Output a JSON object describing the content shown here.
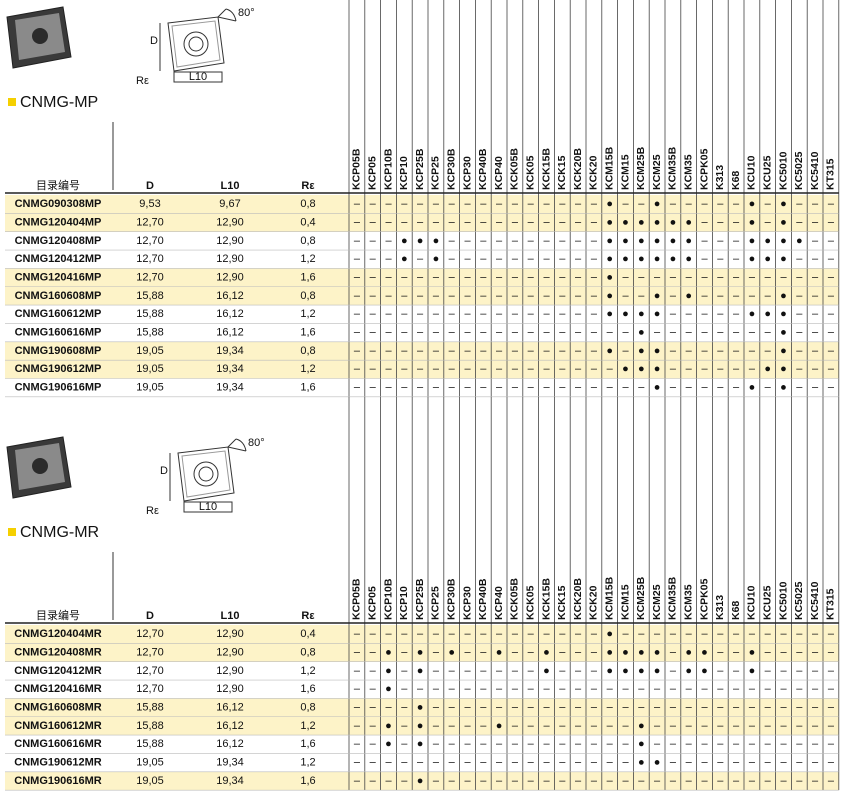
{
  "sections": [
    {
      "title": "CNMG-MP",
      "diagram": {
        "angle": "80°",
        "d": "D",
        "r": "Rε",
        "l10": "L10"
      },
      "headers": [
        "目录编号",
        "D",
        "L10",
        "Rε"
      ],
      "grades": [
        "KCP05B",
        "KCP05",
        "KCP10B",
        "KCP10",
        "KCP25B",
        "KCP25",
        "KCP30B",
        "KCP30",
        "KCP40B",
        "KCP40",
        "KCK05B",
        "KCK05",
        "KCK15B",
        "KCK15",
        "KCK20B",
        "KCK20",
        "KCM15B",
        "KCM15",
        "KCM25B",
        "KCM25",
        "KCM35B",
        "KCM35",
        "KCPK05",
        "K313",
        "K68",
        "KCU10",
        "KCU25",
        "KC5010",
        "KC5025",
        "KC5410",
        "KT315"
      ],
      "rows": [
        {
          "code": "CNMG090308MP",
          "d": "9,53",
          "l10": "9,67",
          "r": "0,8",
          "marks": [
            "–",
            "–",
            "–",
            "–",
            "–",
            "–",
            "–",
            "–",
            "–",
            "–",
            "–",
            "–",
            "–",
            "–",
            "–",
            "–",
            "●",
            "–",
            "–",
            "●",
            "–",
            "–",
            "–",
            "–",
            "–",
            "●",
            "–",
            "●",
            "–",
            "–",
            "–"
          ]
        },
        {
          "code": "CNMG120404MP",
          "d": "12,70",
          "l10": "12,90",
          "r": "0,4",
          "marks": [
            "–",
            "–",
            "–",
            "–",
            "–",
            "–",
            "–",
            "–",
            "–",
            "–",
            "–",
            "–",
            "–",
            "–",
            "–",
            "–",
            "●",
            "●",
            "●",
            "●",
            "●",
            "●",
            "–",
            "–",
            "–",
            "●",
            "–",
            "●",
            "–",
            "–",
            "–"
          ]
        },
        {
          "code": "CNMG120408MP",
          "d": "12,70",
          "l10": "12,90",
          "r": "0,8",
          "marks": [
            "–",
            "–",
            "–",
            "●",
            "●",
            "●",
            "–",
            "–",
            "–",
            "–",
            "–",
            "–",
            "–",
            "–",
            "–",
            "–",
            "●",
            "●",
            "●",
            "●",
            "●",
            "●",
            "–",
            "–",
            "–",
            "●",
            "●",
            "●",
            "●",
            "–",
            "–"
          ]
        },
        {
          "code": "CNMG120412MP",
          "d": "12,70",
          "l10": "12,90",
          "r": "1,2",
          "marks": [
            "–",
            "–",
            "–",
            "●",
            "–",
            "●",
            "–",
            "–",
            "–",
            "–",
            "–",
            "–",
            "–",
            "–",
            "–",
            "–",
            "●",
            "●",
            "●",
            "●",
            "●",
            "●",
            "–",
            "–",
            "–",
            "●",
            "●",
            "●",
            "–",
            "–",
            "–"
          ]
        },
        {
          "code": "CNMG120416MP",
          "d": "12,70",
          "l10": "12,90",
          "r": "1,6",
          "marks": [
            "–",
            "–",
            "–",
            "–",
            "–",
            "–",
            "–",
            "–",
            "–",
            "–",
            "–",
            "–",
            "–",
            "–",
            "–",
            "–",
            "●",
            "–",
            "–",
            "–",
            "–",
            "–",
            "–",
            "–",
            "–",
            "–",
            "–",
            "–",
            "–",
            "–",
            "–"
          ]
        },
        {
          "code": "CNMG160608MP",
          "d": "15,88",
          "l10": "16,12",
          "r": "0,8",
          "marks": [
            "–",
            "–",
            "–",
            "–",
            "–",
            "–",
            "–",
            "–",
            "–",
            "–",
            "–",
            "–",
            "–",
            "–",
            "–",
            "–",
            "●",
            "–",
            "–",
            "●",
            "–",
            "●",
            "–",
            "–",
            "–",
            "–",
            "–",
            "●",
            "–",
            "–",
            "–"
          ]
        },
        {
          "code": "CNMG160612MP",
          "d": "15,88",
          "l10": "16,12",
          "r": "1,2",
          "marks": [
            "–",
            "–",
            "–",
            "–",
            "–",
            "–",
            "–",
            "–",
            "–",
            "–",
            "–",
            "–",
            "–",
            "–",
            "–",
            "–",
            "●",
            "●",
            "●",
            "●",
            "–",
            "–",
            "–",
            "–",
            "–",
            "●",
            "●",
            "●",
            "–",
            "–",
            "–"
          ]
        },
        {
          "code": "CNMG160616MP",
          "d": "15,88",
          "l10": "16,12",
          "r": "1,6",
          "marks": [
            "–",
            "–",
            "–",
            "–",
            "–",
            "–",
            "–",
            "–",
            "–",
            "–",
            "–",
            "–",
            "–",
            "–",
            "–",
            "–",
            "–",
            "–",
            "●",
            "–",
            "–",
            "–",
            "–",
            "–",
            "–",
            "–",
            "–",
            "●",
            "–",
            "–",
            "–"
          ]
        },
        {
          "code": "CNMG190608MP",
          "d": "19,05",
          "l10": "19,34",
          "r": "0,8",
          "marks": [
            "–",
            "–",
            "–",
            "–",
            "–",
            "–",
            "–",
            "–",
            "–",
            "–",
            "–",
            "–",
            "–",
            "–",
            "–",
            "–",
            "●",
            "–",
            "●",
            "●",
            "–",
            "–",
            "–",
            "–",
            "–",
            "–",
            "–",
            "●",
            "–",
            "–",
            "–"
          ]
        },
        {
          "code": "CNMG190612MP",
          "d": "19,05",
          "l10": "19,34",
          "r": "1,2",
          "marks": [
            "–",
            "–",
            "–",
            "–",
            "–",
            "–",
            "–",
            "–",
            "–",
            "–",
            "–",
            "–",
            "–",
            "–",
            "–",
            "–",
            "–",
            "●",
            "●",
            "●",
            "–",
            "–",
            "–",
            "–",
            "–",
            "–",
            "●",
            "●",
            "–",
            "–",
            "–"
          ]
        },
        {
          "code": "CNMG190616MP",
          "d": "19,05",
          "l10": "19,34",
          "r": "1,6",
          "marks": [
            "–",
            "–",
            "–",
            "–",
            "–",
            "–",
            "–",
            "–",
            "–",
            "–",
            "–",
            "–",
            "–",
            "–",
            "–",
            "–",
            "–",
            "–",
            "–",
            "●",
            "–",
            "–",
            "–",
            "–",
            "–",
            "●",
            "–",
            "●",
            "–",
            "–",
            "–"
          ]
        }
      ]
    },
    {
      "title": "CNMG-MR",
      "diagram": {
        "angle": "80°",
        "d": "D",
        "r": "Rε",
        "l10": "L10"
      },
      "headers": [
        "目录编号",
        "D",
        "L10",
        "Rε"
      ],
      "grades": [
        "KCP05B",
        "KCP05",
        "KCP10B",
        "KCP10",
        "KCP25B",
        "KCP25",
        "KCP30B",
        "KCP30",
        "KCP40B",
        "KCP40",
        "KCK05B",
        "KCK05",
        "KCK15B",
        "KCK15",
        "KCK20B",
        "KCK20",
        "KCM15B",
        "KCM15",
        "KCM25B",
        "KCM25",
        "KCM35B",
        "KCM35",
        "KCPK05",
        "K313",
        "K68",
        "KCU10",
        "KCU25",
        "KC5010",
        "KC5025",
        "KC5410",
        "KT315"
      ],
      "rows": [
        {
          "code": "CNMG120404MR",
          "d": "12,70",
          "l10": "12,90",
          "r": "0,4",
          "marks": [
            "–",
            "–",
            "–",
            "–",
            "–",
            "–",
            "–",
            "–",
            "–",
            "–",
            "–",
            "–",
            "–",
            "–",
            "–",
            "–",
            "●",
            "–",
            "–",
            "–",
            "–",
            "–",
            "–",
            "–",
            "–",
            "–",
            "–",
            "–",
            "–",
            "–",
            "–"
          ]
        },
        {
          "code": "CNMG120408MR",
          "d": "12,70",
          "l10": "12,90",
          "r": "0,8",
          "marks": [
            "–",
            "–",
            "●",
            "–",
            "●",
            "–",
            "●",
            "–",
            "–",
            "●",
            "–",
            "–",
            "●",
            "–",
            "–",
            "–",
            "●",
            "●",
            "●",
            "●",
            "–",
            "●",
            "●",
            "–",
            "–",
            "●",
            "–",
            "–",
            "–",
            "–",
            "–"
          ]
        },
        {
          "code": "CNMG120412MR",
          "d": "12,70",
          "l10": "12,90",
          "r": "1,2",
          "marks": [
            "–",
            "–",
            "●",
            "–",
            "●",
            "–",
            "–",
            "–",
            "–",
            "–",
            "–",
            "–",
            "●",
            "–",
            "–",
            "–",
            "●",
            "●",
            "●",
            "●",
            "–",
            "●",
            "●",
            "–",
            "–",
            "●",
            "–",
            "–",
            "–",
            "–",
            "–"
          ]
        },
        {
          "code": "CNMG120416MR",
          "d": "12,70",
          "l10": "12,90",
          "r": "1,6",
          "marks": [
            "–",
            "–",
            "●",
            "–",
            "–",
            "–",
            "–",
            "–",
            "–",
            "–",
            "–",
            "–",
            "–",
            "–",
            "–",
            "–",
            "–",
            "–",
            "–",
            "–",
            "–",
            "–",
            "–",
            "–",
            "–",
            "–",
            "–",
            "–",
            "–",
            "–",
            "–"
          ]
        },
        {
          "code": "CNMG160608MR",
          "d": "15,88",
          "l10": "16,12",
          "r": "0,8",
          "marks": [
            "–",
            "–",
            "–",
            "–",
            "●",
            "–",
            "–",
            "–",
            "–",
            "–",
            "–",
            "–",
            "–",
            "–",
            "–",
            "–",
            "–",
            "–",
            "–",
            "–",
            "–",
            "–",
            "–",
            "–",
            "–",
            "–",
            "–",
            "–",
            "–",
            "–",
            "–"
          ]
        },
        {
          "code": "CNMG160612MR",
          "d": "15,88",
          "l10": "16,12",
          "r": "1,2",
          "marks": [
            "–",
            "–",
            "●",
            "–",
            "●",
            "–",
            "–",
            "–",
            "–",
            "●",
            "–",
            "–",
            "–",
            "–",
            "–",
            "–",
            "–",
            "–",
            "●",
            "–",
            "–",
            "–",
            "–",
            "–",
            "–",
            "–",
            "–",
            "–",
            "–",
            "–",
            "–"
          ]
        },
        {
          "code": "CNMG160616MR",
          "d": "15,88",
          "l10": "16,12",
          "r": "1,6",
          "marks": [
            "–",
            "–",
            "●",
            "–",
            "●",
            "–",
            "–",
            "–",
            "–",
            "–",
            "–",
            "–",
            "–",
            "–",
            "–",
            "–",
            "–",
            "–",
            "●",
            "–",
            "–",
            "–",
            "–",
            "–",
            "–",
            "–",
            "–",
            "–",
            "–",
            "–",
            "–"
          ]
        },
        {
          "code": "CNMG190612MR",
          "d": "19,05",
          "l10": "19,34",
          "r": "1,2",
          "marks": [
            "–",
            "–",
            "–",
            "–",
            "–",
            "–",
            "–",
            "–",
            "–",
            "–",
            "–",
            "–",
            "–",
            "–",
            "–",
            "–",
            "–",
            "–",
            "●",
            "●",
            "–",
            "–",
            "–",
            "–",
            "–",
            "–",
            "–",
            "–",
            "–",
            "–",
            "–"
          ]
        },
        {
          "code": "CNMG190616MR",
          "d": "19,05",
          "l10": "19,34",
          "r": "1,6",
          "marks": [
            "–",
            "–",
            "–",
            "–",
            "●",
            "–",
            "–",
            "–",
            "–",
            "–",
            "–",
            "–",
            "–",
            "–",
            "–",
            "–",
            "–",
            "–",
            "–",
            "–",
            "–",
            "–",
            "–",
            "–",
            "–",
            "–",
            "–",
            "–",
            "–",
            "–",
            "–"
          ]
        }
      ]
    }
  ]
}
